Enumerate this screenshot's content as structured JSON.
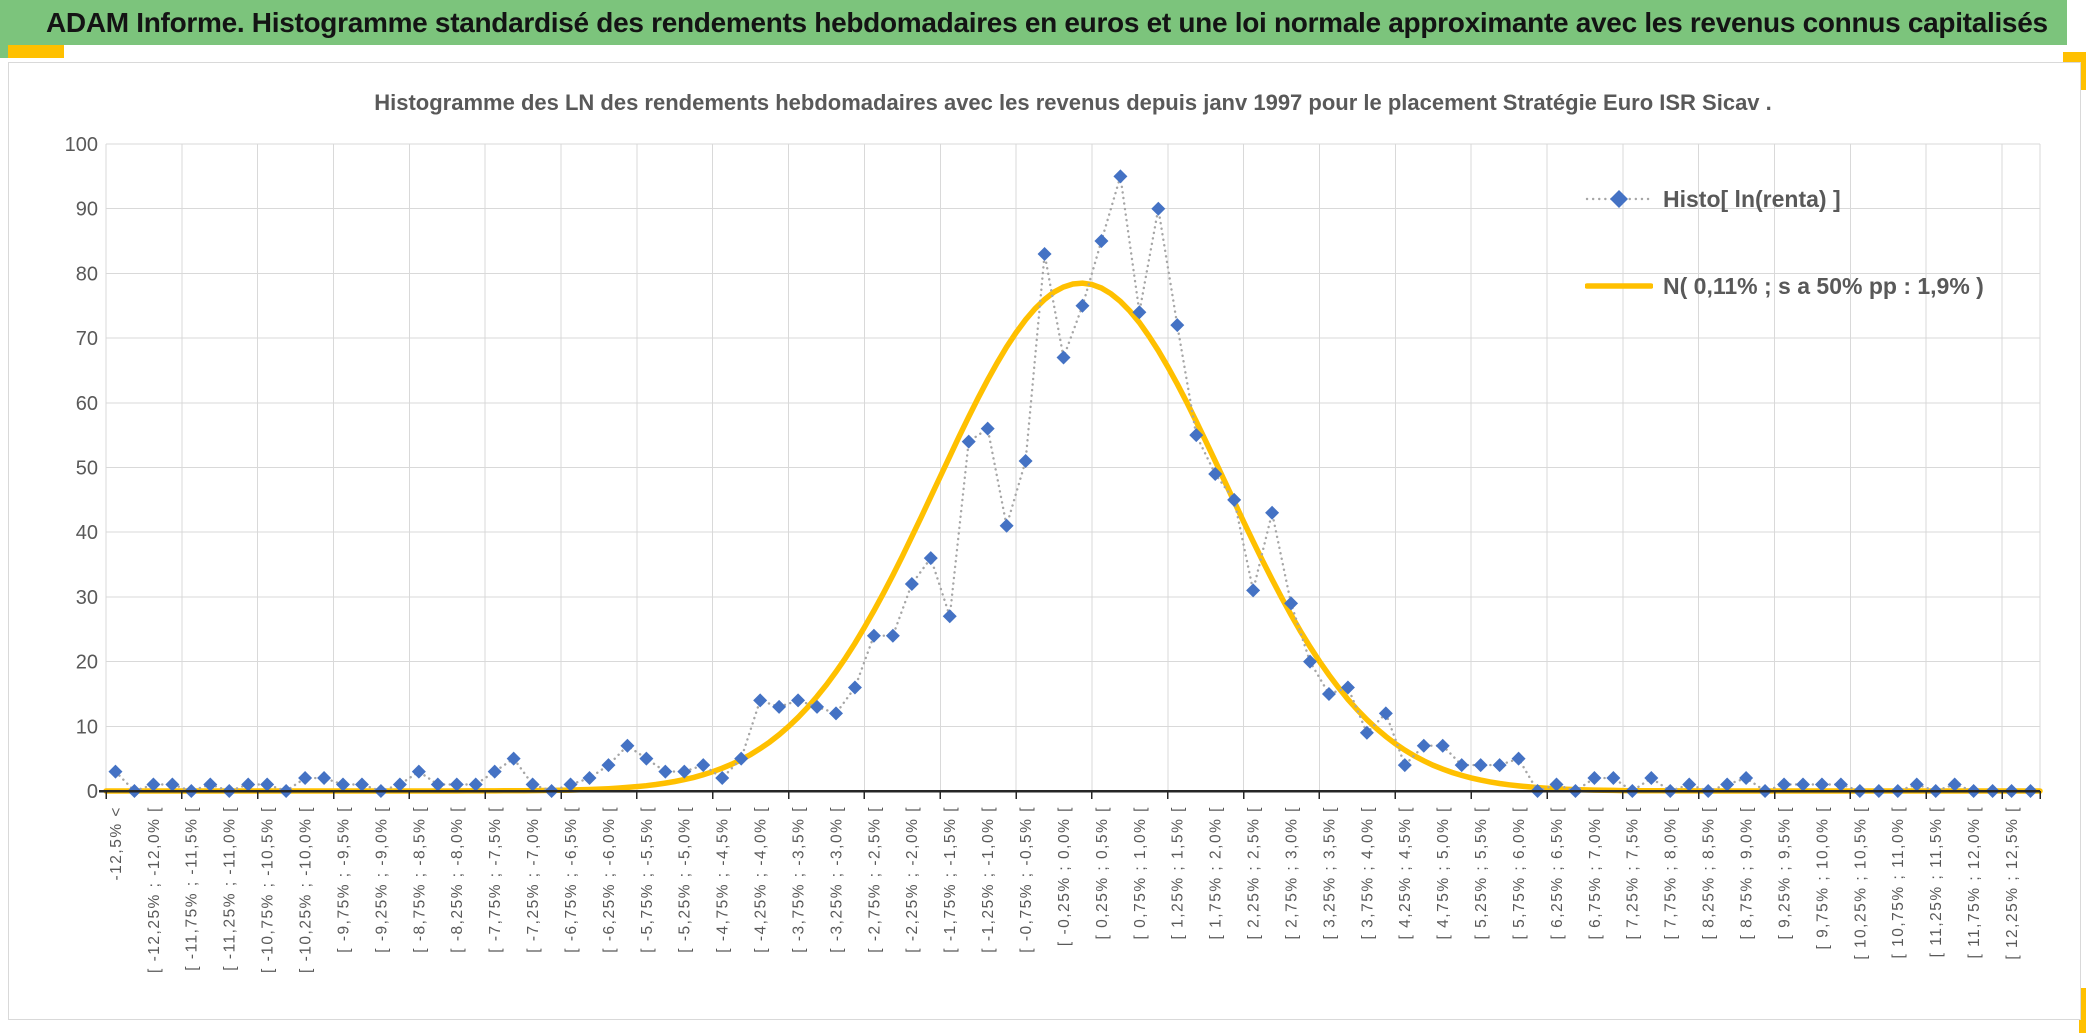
{
  "banner": {
    "title": "ADAM Informe. Histogramme standardisé des rendements hebdomadaires en euros et une loi normale approximante avec les revenus connus capitalisés"
  },
  "chart": {
    "title": "Histogramme des LN des rendements hebdomadaires avec les revenus depuis janv 1997 pour le placement Stratégie Euro ISR Sicav ."
  },
  "legend": {
    "items": [
      {
        "label": "Histo[ ln(renta) ]",
        "marker": "diamond-dotted-line",
        "marker_color": "#4472C4",
        "line_color": "#A6A6A6"
      },
      {
        "label": "N( 0,11% ; s a 50% pp : 1,9% )",
        "marker": "solid-line",
        "marker_color": "#FFC000",
        "line_color": "#FFC000"
      }
    ]
  },
  "chart_data": {
    "type": "line",
    "title": "Histogramme des LN des rendements hebdomadaires avec les revenus depuis janv 1997 pour le placement Stratégie Euro ISR Sicav .",
    "xlabel": "",
    "ylabel": "",
    "ylim": [
      0,
      100
    ],
    "grid": {
      "h_every": 10,
      "v_every_bins": 4,
      "color": "#D9D9D9"
    },
    "legend_position": "inside-top-right",
    "x_axis": {
      "n_bins": 102,
      "bin_width_pct": 0.25,
      "first_bin_start_pct": -12.5,
      "label_every_n_bins": 2,
      "visible_tick_labels": [
        "-12,5% <",
        "[ -12,25% ; -12,0% [",
        "[ -11,75% ; -11,5% [",
        "[ -11,25% ; -11,0% [",
        "[ -10,75% ; -10,5% [",
        "[ -10,25% ; -10,0% [",
        "[ -9,75% ; -9,5% [",
        "[ -9,25% ; -9,0% [",
        "[ -8,75% ; -8,5% [",
        "[ -8,25% ; -8,0% [",
        "[ -7,75% ; -7,5% [",
        "[ -7,25% ; -7,0% [",
        "[ -6,75% ; -6,5% [",
        "[ -6,25% ; -6,0% [",
        "[ -5,75% ; -5,5% [",
        "[ -5,25% ; -5,0% [",
        "[ -4,75% ; -4,5% [",
        "[ -4,25% ; -4,0% [",
        "[ -3,75% ; -3,5% [",
        "[ -3,25% ; -3,0% [",
        "[ -2,75% ; -2,5% [",
        "[ -2,25% ; -2,0% [",
        "[ -1,75% ; -1,5% [",
        "[ -1,25% ; -1,0% [",
        "[ -0,75% ; -0,5% [",
        "[ -0,25% ; 0,0% [",
        "[ 0,25% ; 0,5% [",
        "[ 0,75% ; 1,0% [",
        "[ 1,25% ; 1,5% [",
        "[ 1,75% ; 2,0% [",
        "[ 2,25% ; 2,5% [",
        "[ 2,75% ; 3,0% [",
        "[ 3,25% ; 3,5% [",
        "[ 3,75% ; 4,0% [",
        "[ 4,25% ; 4,5% [",
        "[ 4,75% ; 5,0% [",
        "[ 5,25% ; 5,5% [",
        "[ 5,75% ; 6,0% [",
        "[ 6,25% ; 6,5% [",
        "[ 6,75% ; 7,0% [",
        "[ 7,25% ; 7,5% [",
        "[ 7,75% ; 8,0% [",
        "[ 8,25% ; 8,5% [",
        "[ 8,75% ; 9,0% [",
        "[ 9,25% ; 9,5% [",
        "[ 9,75% ; 10,0% [",
        "[ 10,25% ; 10,5% [",
        "[ 10,75% ; 11,0% [",
        "[ 11,25% ; 11,5% [",
        "[ 11,75% ; 12,0% [",
        "[ 12,25% ; 12,5% ["
      ]
    },
    "y_axis": {
      "min": 0,
      "max": 100,
      "ticks": [
        0,
        10,
        20,
        30,
        40,
        50,
        60,
        70,
        80,
        90,
        100
      ]
    },
    "series": [
      {
        "name": "Histo[ ln(renta) ]",
        "type": "scatter-dotted",
        "marker": "diamond",
        "marker_color": "#4472C4",
        "line_color": "#A6A6A6",
        "values": [
          3,
          0,
          1,
          1,
          0,
          1,
          0,
          1,
          1,
          0,
          2,
          2,
          1,
          1,
          0,
          1,
          3,
          1,
          1,
          1,
          3,
          5,
          1,
          0,
          1,
          2,
          4,
          7,
          5,
          3,
          3,
          4,
          2,
          5,
          14,
          13,
          14,
          13,
          12,
          16,
          24,
          24,
          32,
          36,
          27,
          54,
          56,
          41,
          51,
          83,
          67,
          75,
          85,
          95,
          74,
          90,
          72,
          55,
          49,
          45,
          31,
          43,
          29,
          20,
          15,
          16,
          9,
          12,
          4,
          7,
          7,
          4,
          4,
          4,
          5,
          0,
          1,
          0,
          2,
          2,
          0,
          2,
          0,
          1,
          0,
          1,
          2,
          0,
          1,
          1,
          1,
          1,
          0,
          0,
          0,
          1,
          0,
          1,
          0,
          0,
          0,
          0
        ]
      },
      {
        "name": "N( 0,11% ; s a 50% pp : 1,9% )",
        "type": "normal-curve",
        "color": "#FFC000",
        "mean_pct": 0.11,
        "sd_pct": 1.9,
        "bin_width_pct": 0.25,
        "peak_height": 78.5
      }
    ]
  },
  "colors": {
    "banner_bg": "#7CC47C",
    "banner_text": "#141414",
    "accent_gold": "#FFC000",
    "axis_text": "#595959",
    "axis_line": "#262626",
    "grid": "#D9D9D9",
    "diamond_blue": "#4472C4",
    "dotted_gray": "#A6A6A6",
    "panel_border": "#D9D9D9"
  }
}
